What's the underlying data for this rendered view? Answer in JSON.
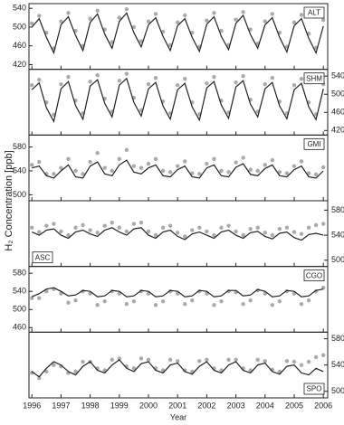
{
  "ylabel": "H₂ Concentration [ppb]",
  "x_axis": {
    "label": "Year",
    "xlim": [
      1995.9,
      2006.15
    ],
    "xticks": [
      1996,
      1997,
      1998,
      1999,
      2000,
      2001,
      2002,
      2003,
      2004,
      2005,
      2006
    ],
    "x": [
      1996,
      1996.25,
      1996.5,
      1996.75,
      1997,
      1997.25,
      1997.5,
      1997.75,
      1998,
      1998.25,
      1998.5,
      1998.75,
      1999,
      1999.25,
      1999.5,
      1999.75,
      2000,
      2000.25,
      2000.5,
      2000.75,
      2001,
      2001.25,
      2001.5,
      2001.75,
      2002,
      2002.25,
      2002.5,
      2002.75,
      2003,
      2003.25,
      2003.5,
      2003.75,
      2004,
      2004.25,
      2004.5,
      2004.75,
      2005,
      2005.25,
      2005.5,
      2005.75,
      2006
    ]
  },
  "chart_data": [
    {
      "type": "line",
      "label": "ALT",
      "label_corner": "top-right",
      "yaxis_side": "left",
      "ylim": [
        410,
        550
      ],
      "yticks": [
        420,
        460,
        500,
        540
      ],
      "series": [
        {
          "color": "#aaaaaa",
          "style": "points",
          "values": [
            508,
            524,
            488,
            455,
            512,
            530,
            492,
            460,
            518,
            535,
            495,
            468,
            520,
            538,
            500,
            470,
            512,
            528,
            490,
            462,
            510,
            525,
            488,
            458,
            514,
            530,
            492,
            462,
            516,
            532,
            495,
            465,
            512,
            528,
            488,
            458,
            510,
            526,
            486,
            456,
            515
          ]
        },
        {
          "color": "#222222",
          "style": "line",
          "values": [
            500,
            518,
            478,
            445,
            505,
            522,
            482,
            450,
            510,
            528,
            485,
            455,
            512,
            530,
            488,
            458,
            505,
            520,
            480,
            450,
            503,
            518,
            478,
            448,
            506,
            522,
            480,
            452,
            508,
            525,
            484,
            455,
            505,
            520,
            478,
            447,
            503,
            518,
            476,
            445,
            502
          ]
        }
      ]
    },
    {
      "type": "line",
      "label": "SHM",
      "label_corner": "top-right",
      "yaxis_side": "right",
      "ylim": [
        410,
        555
      ],
      "yticks": [
        420,
        460,
        500,
        540
      ],
      "series": [
        {
          "color": "#aaaaaa",
          "style": "points",
          "values": [
            520,
            532,
            482,
            455,
            522,
            538,
            486,
            458,
            528,
            542,
            490,
            462,
            530,
            545,
            492,
            465,
            522,
            536,
            484,
            458,
            520,
            534,
            482,
            456,
            524,
            538,
            486,
            460,
            526,
            540,
            488,
            462,
            522,
            536,
            484,
            458,
            520,
            534,
            482,
            456,
            522
          ]
        },
        {
          "color": "#222222",
          "style": "line",
          "values": [
            510,
            525,
            470,
            440,
            512,
            528,
            475,
            445,
            518,
            532,
            480,
            450,
            520,
            535,
            482,
            452,
            512,
            526,
            474,
            445,
            510,
            524,
            472,
            443,
            514,
            528,
            476,
            447,
            516,
            530,
            478,
            450,
            512,
            526,
            474,
            446,
            510,
            524,
            472,
            444,
            512
          ]
        }
      ]
    },
    {
      "type": "line",
      "label": "GMI",
      "label_corner": "top-right",
      "yaxis_side": "left",
      "ylim": [
        490,
        600
      ],
      "yticks": [
        500,
        540,
        580
      ],
      "series": [
        {
          "color": "#aaaaaa",
          "style": "points",
          "values": [
            550,
            555,
            535,
            535,
            545,
            560,
            540,
            535,
            555,
            570,
            545,
            540,
            560,
            575,
            548,
            545,
            552,
            560,
            540,
            538,
            548,
            556,
            536,
            535,
            552,
            560,
            540,
            538,
            554,
            562,
            542,
            540,
            550,
            558,
            538,
            536,
            548,
            556,
            536,
            534,
            546
          ]
        },
        {
          "color": "#222222",
          "style": "line",
          "values": [
            545,
            548,
            532,
            528,
            540,
            550,
            530,
            528,
            548,
            555,
            535,
            532,
            550,
            558,
            538,
            535,
            545,
            550,
            532,
            530,
            542,
            548,
            530,
            528,
            545,
            550,
            532,
            530,
            546,
            552,
            534,
            532,
            544,
            550,
            532,
            530,
            542,
            548,
            530,
            528,
            540
          ]
        }
      ]
    },
    {
      "type": "line",
      "label": "ASC",
      "label_corner": "bottom-left",
      "yaxis_side": "right",
      "ylim": [
        490,
        595
      ],
      "yticks": [
        500,
        540,
        580
      ],
      "series": [
        {
          "color": "#aaaaaa",
          "style": "points",
          "values": [
            552,
            545,
            555,
            558,
            546,
            540,
            552,
            556,
            548,
            544,
            555,
            560,
            552,
            546,
            558,
            560,
            546,
            540,
            552,
            555,
            544,
            538,
            548,
            552,
            546,
            540,
            552,
            555,
            546,
            540,
            550,
            552,
            544,
            540,
            550,
            552,
            545,
            542,
            552,
            556,
            558
          ]
        },
        {
          "color": "#222222",
          "style": "line",
          "values": [
            545,
            540,
            548,
            550,
            540,
            535,
            545,
            548,
            542,
            538,
            548,
            552,
            545,
            540,
            550,
            552,
            540,
            535,
            545,
            548,
            538,
            533,
            542,
            545,
            540,
            535,
            545,
            548,
            540,
            535,
            544,
            546,
            538,
            534,
            543,
            545,
            536,
            532,
            541,
            543,
            540
          ]
        }
      ]
    },
    {
      "type": "line",
      "label": "CGO",
      "label_corner": "top-right",
      "yaxis_side": "left",
      "ylim": [
        450,
        595
      ],
      "yticks": [
        460,
        500,
        540,
        580
      ],
      "series": [
        {
          "color": "#aaaaaa",
          "style": "points",
          "values": [
            525,
            525,
            540,
            545,
            535,
            515,
            520,
            540,
            535,
            510,
            518,
            540,
            535,
            512,
            518,
            540,
            535,
            510,
            518,
            540,
            535,
            512,
            520,
            540,
            535,
            510,
            518,
            540,
            538,
            512,
            520,
            542,
            535,
            510,
            518,
            540,
            535,
            512,
            520,
            540,
            548
          ]
        },
        {
          "color": "#222222",
          "style": "line",
          "values": [
            528,
            535,
            545,
            548,
            540,
            530,
            532,
            542,
            540,
            528,
            530,
            542,
            540,
            528,
            530,
            542,
            540,
            528,
            530,
            542,
            540,
            528,
            530,
            542,
            540,
            528,
            530,
            542,
            542,
            530,
            532,
            544,
            540,
            528,
            530,
            542,
            540,
            528,
            530,
            542,
            545
          ]
        }
      ]
    },
    {
      "type": "line",
      "label": "SPO",
      "label_corner": "bottom-right",
      "yaxis_side": "right",
      "ylim": [
        490,
        590
      ],
      "yticks": [
        500,
        540,
        580
      ],
      "series": [
        {
          "color": "#aaaaaa",
          "style": "points",
          "values": [
            528,
            520,
            530,
            540,
            538,
            528,
            530,
            545,
            545,
            535,
            532,
            548,
            550,
            538,
            535,
            550,
            548,
            535,
            532,
            548,
            546,
            532,
            530,
            546,
            548,
            535,
            532,
            548,
            548,
            535,
            532,
            548,
            546,
            533,
            530,
            546,
            545,
            540,
            545,
            552,
            555
          ]
        },
        {
          "color": "#222222",
          "style": "line",
          "values": [
            530,
            522,
            535,
            545,
            540,
            530,
            525,
            538,
            545,
            532,
            528,
            540,
            548,
            535,
            530,
            542,
            545,
            532,
            528,
            540,
            543,
            530,
            526,
            538,
            545,
            532,
            528,
            540,
            545,
            532,
            528,
            540,
            543,
            530,
            526,
            538,
            540,
            528,
            525,
            535,
            530
          ]
        }
      ]
    }
  ]
}
